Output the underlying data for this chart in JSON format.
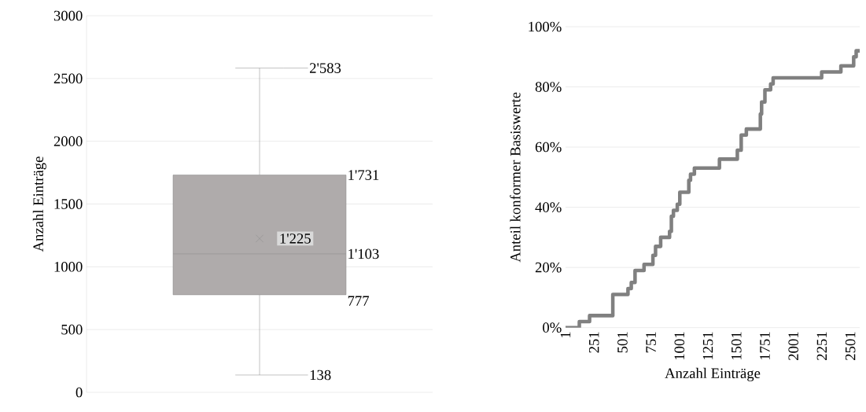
{
  "chart_data": [
    {
      "type": "box",
      "categories": [
        null
      ],
      "color": "#afabab",
      "ylabel": "Anzahl Einträge",
      "ylim": [
        0,
        3000
      ],
      "yticks": [
        0,
        500,
        1000,
        1500,
        2000,
        2500,
        3000
      ],
      "grid": "y",
      "boxes": [
        {
          "low": 138,
          "q1": 777,
          "median": 1103,
          "q3": 1731,
          "high": 2583,
          "mean": 1225
        }
      ],
      "annotations": [
        "2'583",
        "1'731",
        "1'225",
        "1'103",
        "777",
        "138"
      ]
    },
    {
      "type": "step",
      "color": "#808080",
      "xlabel": "Anzahl Einträge",
      "ylabel": "Anteil konformer Basiswerte",
      "grid": "y",
      "xlim": [
        1,
        2583
      ],
      "xticks": [
        1,
        251,
        501,
        751,
        1001,
        1251,
        1501,
        1751,
        2001,
        2251,
        2501
      ],
      "ylim": [
        0,
        100
      ],
      "yticks": [
        {
          "value": 0,
          "label": "0%"
        },
        {
          "value": 20,
          "label": "20%"
        },
        {
          "value": 40,
          "label": "40%"
        },
        {
          "value": 60,
          "label": "60%"
        },
        {
          "value": 80,
          "label": "80%"
        },
        {
          "value": 100,
          "label": "100%"
        }
      ],
      "x": [
        1,
        122,
        212,
        416,
        549,
        578,
        611,
        690,
        768,
        791,
        836,
        914,
        930,
        948,
        982,
        1004,
        1083,
        1098,
        1132,
        1352,
        1509,
        1543,
        1588,
        1711,
        1722,
        1751,
        1801,
        1823,
        2249,
        2418,
        2530,
        2552,
        2583
      ],
      "values": [
        0,
        2,
        4,
        11,
        13,
        15,
        19,
        21,
        24,
        27,
        30,
        32,
        37,
        39,
        41,
        45,
        49,
        51,
        53,
        56,
        59,
        64,
        66,
        71,
        75,
        79,
        81,
        83,
        85,
        87,
        90,
        92,
        92
      ]
    }
  ]
}
